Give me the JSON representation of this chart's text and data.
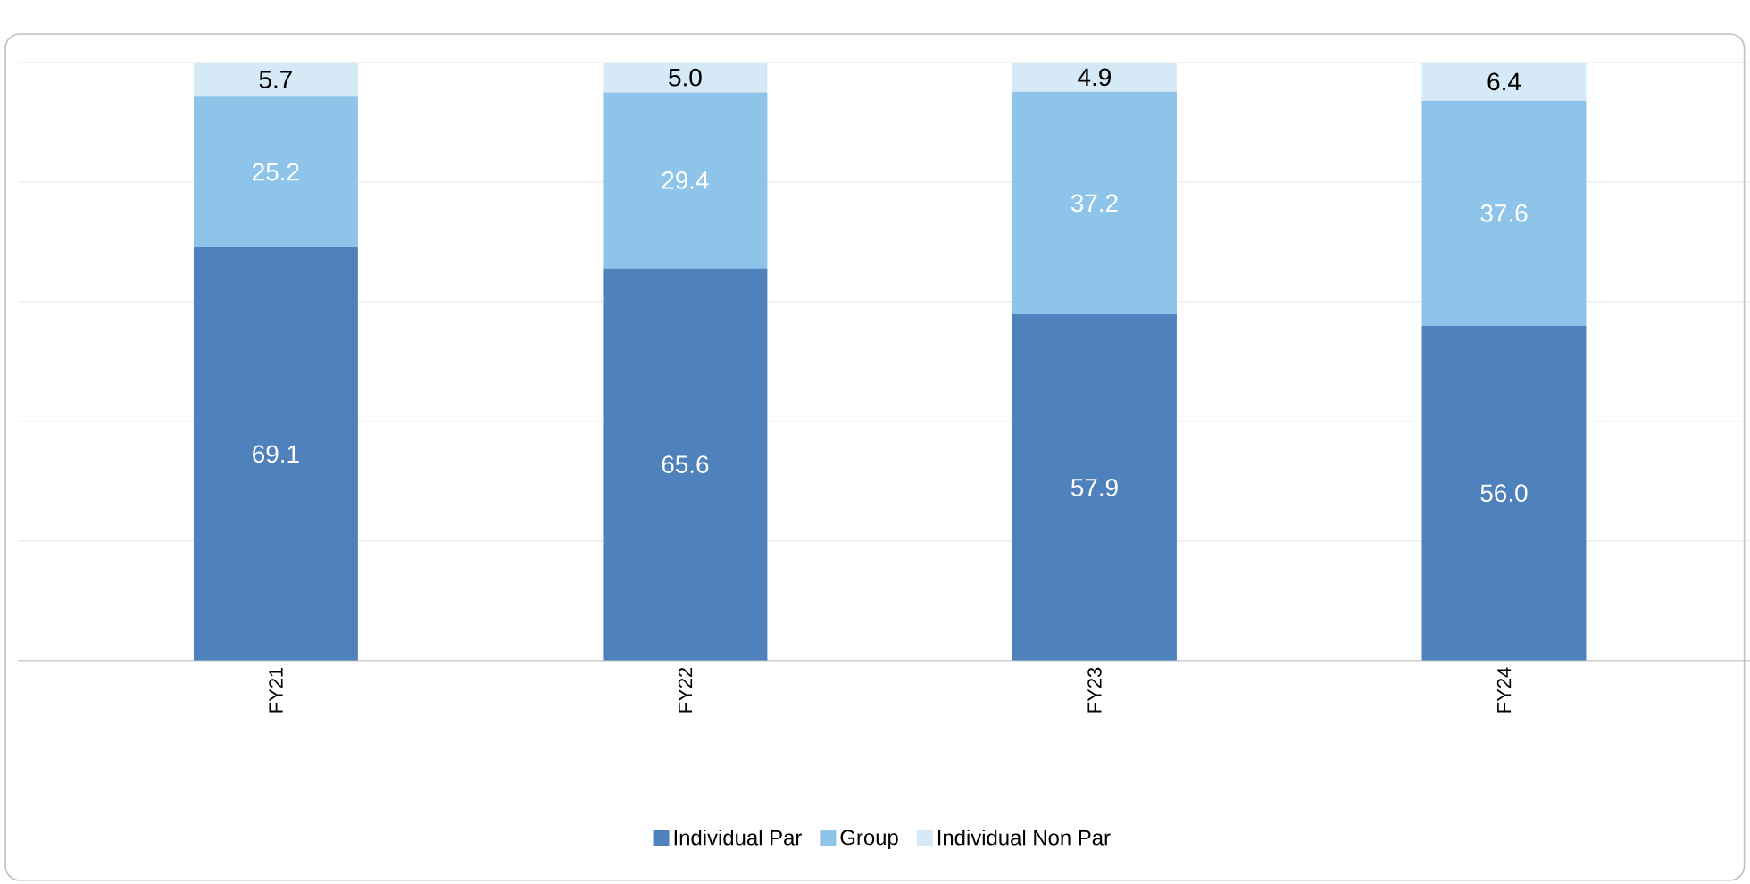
{
  "chart_data": {
    "type": "bar",
    "stacked": true,
    "categories": [
      "FY21",
      "FY22",
      "FY23",
      "FY24"
    ],
    "series": [
      {
        "name": "Individual Par",
        "color": "#4f81bd",
        "values": [
          69.1,
          65.6,
          57.9,
          56.0
        ],
        "value_labels": [
          "69.1",
          "65.6",
          "57.9",
          "56.0"
        ]
      },
      {
        "name": "Group",
        "color": "#8ec3ea",
        "values": [
          25.2,
          29.4,
          37.2,
          37.6
        ],
        "value_labels": [
          "25.2",
          "29.4",
          "37.2",
          "37.6"
        ]
      },
      {
        "name": "Individual Non Par",
        "color": "#d6e9f6",
        "values": [
          5.7,
          5.0,
          4.9,
          6.4
        ],
        "value_labels": [
          "5.7",
          "5.0",
          "4.9",
          "6.4"
        ]
      }
    ],
    "ylim": [
      0,
      100
    ],
    "yticks": [
      {
        "value": 0,
        "label": null
      },
      {
        "value": 20,
        "label": null
      },
      {
        "value": 40,
        "label": null
      },
      {
        "value": 60,
        "label": null
      },
      {
        "value": 80,
        "label": null
      },
      {
        "value": 100,
        "label": null
      }
    ],
    "grid": "y",
    "legend": "bottom",
    "tick_labels": "x"
  }
}
